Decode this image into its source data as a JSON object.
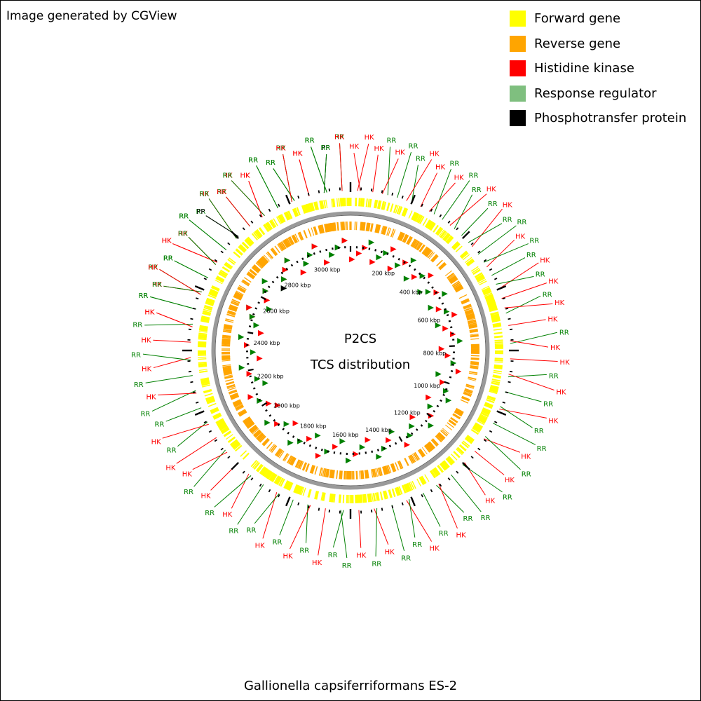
{
  "credit": "Image generated by CGView",
  "caption": "Gallionella capsiferriformans ES-2",
  "center_title": "P2CS",
  "center_subtitle": "TCS distribution",
  "legend": [
    {
      "label": "Forward gene",
      "color": "#ffff00"
    },
    {
      "label": "Reverse gene",
      "color": "#ffa500"
    },
    {
      "label": "Histidine kinase",
      "color": "#ff0000"
    },
    {
      "label": "Response regulator",
      "color": "#7fbf7f"
    },
    {
      "label": "Phosphotransfer protein",
      "color": "#000000"
    }
  ],
  "genome_ruler": {
    "unit": "kbp",
    "tick_labels": [
      "200 kbp",
      "400 kbp",
      "600 kbp",
      "800 kbp",
      "1000 kbp",
      "1200 kbp",
      "1400 kbp",
      "1600 kbp",
      "1800 kbp",
      "2000 kbp",
      "2200 kbp",
      "2400 kbp",
      "2600 kbp",
      "2800 kbp",
      "3000 kbp"
    ]
  },
  "feature_labels": [
    {
      "text": "HK",
      "color": "#ff0000",
      "deg": -79
    },
    {
      "text": "RR",
      "color": "#008000",
      "deg": -75
    },
    {
      "text": "HK",
      "color": "#ff0000",
      "deg": -71
    },
    {
      "text": "RR",
      "color": "#008000",
      "deg": -67
    },
    {
      "text": "RR",
      "color": "#008000",
      "deg": -63
    },
    {
      "text": "HK",
      "color": "#ff0000",
      "deg": -59
    },
    {
      "text": "HK",
      "color": "#ff0000",
      "deg": -55
    },
    {
      "text": "RR",
      "color": "#008000",
      "deg": -51
    },
    {
      "text": "RR",
      "color": "#008000",
      "deg": -47
    },
    {
      "text": "HK",
      "color": "#ff0000",
      "deg": -43
    },
    {
      "text": "RR",
      "color": "#008000",
      "deg": -39
    },
    {
      "text": "HK",
      "color": "#ff0000",
      "deg": -35
    },
    {
      "text": "HK",
      "color": "#ff0000",
      "deg": -31
    },
    {
      "text": "RR",
      "color": "#008000",
      "deg": -27
    },
    {
      "text": "RR",
      "color": "#008000",
      "deg": -23
    },
    {
      "text": "RR",
      "color": "#008000",
      "deg": -19
    },
    {
      "text": "HK",
      "color": "#ff0000",
      "deg": -15
    },
    {
      "text": "RR",
      "color": "#008000",
      "deg": -11
    },
    {
      "text": "PP",
      "color": "#000000",
      "deg": -7
    },
    {
      "text": "RR",
      "color": "#008000",
      "deg": -3
    },
    {
      "text": "HK",
      "color": "#ff0000",
      "deg": 1
    },
    {
      "text": "HK",
      "color": "#ff0000",
      "deg": 5
    },
    {
      "text": "HK",
      "color": "#ff0000",
      "deg": 8
    },
    {
      "text": "RR",
      "color": "#008000",
      "deg": 11
    },
    {
      "text": "HK",
      "color": "#ff0000",
      "deg": 14
    },
    {
      "text": "RR",
      "color": "#008000",
      "deg": 17
    },
    {
      "text": "RR",
      "color": "#008000",
      "deg": 20
    },
    {
      "text": "HK",
      "color": "#ff0000",
      "deg": 23
    },
    {
      "text": "HK",
      "color": "#ff0000",
      "deg": 26
    },
    {
      "text": "RR",
      "color": "#008000",
      "deg": 29
    },
    {
      "text": "HK",
      "color": "#ff0000",
      "deg": 32
    },
    {
      "text": "RR",
      "color": "#008000",
      "deg": 35
    },
    {
      "text": "RR",
      "color": "#008000",
      "deg": 38
    },
    {
      "text": "HK",
      "color": "#ff0000",
      "deg": 41
    },
    {
      "text": "RR",
      "color": "#008000",
      "deg": 44
    },
    {
      "text": "HK",
      "color": "#ff0000",
      "deg": 47
    },
    {
      "text": "RR",
      "color": "#008000",
      "deg": 50
    },
    {
      "text": "RR",
      "color": "#008000",
      "deg": 53
    },
    {
      "text": "HK",
      "color": "#ff0000",
      "deg": 56
    },
    {
      "text": "RR",
      "color": "#008000",
      "deg": 59
    },
    {
      "text": "RR",
      "color": "#008000",
      "deg": 62
    },
    {
      "text": "HK",
      "color": "#ff0000",
      "deg": 65
    },
    {
      "text": "RR",
      "color": "#008000",
      "deg": 68
    },
    {
      "text": "HK",
      "color": "#ff0000",
      "deg": 71
    },
    {
      "text": "RR",
      "color": "#008000",
      "deg": 74
    },
    {
      "text": "HK",
      "color": "#ff0000",
      "deg": 77
    },
    {
      "text": "HK",
      "color": "#ff0000",
      "deg": 81
    },
    {
      "text": "RR",
      "color": "#008000",
      "deg": 85
    },
    {
      "text": "HK",
      "color": "#ff0000",
      "deg": 89
    },
    {
      "text": "HK",
      "color": "#ff0000",
      "deg": 93
    },
    {
      "text": "RR",
      "color": "#008000",
      "deg": 97
    },
    {
      "text": "HK",
      "color": "#ff0000",
      "deg": 101
    },
    {
      "text": "RR",
      "color": "#008000",
      "deg": 105
    },
    {
      "text": "HK",
      "color": "#ff0000",
      "deg": 109
    },
    {
      "text": "RR",
      "color": "#008000",
      "deg": 113
    },
    {
      "text": "RR",
      "color": "#008000",
      "deg": 117
    },
    {
      "text": "HK",
      "color": "#ff0000",
      "deg": 121
    },
    {
      "text": "RR",
      "color": "#008000",
      "deg": 125
    },
    {
      "text": "HK",
      "color": "#ff0000",
      "deg": 129
    },
    {
      "text": "RR",
      "color": "#008000",
      "deg": 133
    },
    {
      "text": "HK",
      "color": "#ff0000",
      "deg": 137
    },
    {
      "text": "RR",
      "color": "#008000",
      "deg": 141
    },
    {
      "text": "RR",
      "color": "#008000",
      "deg": 145
    },
    {
      "text": "HK",
      "color": "#ff0000",
      "deg": 149
    },
    {
      "text": "RR",
      "color": "#008000",
      "deg": 153
    },
    {
      "text": "HK",
      "color": "#ff0000",
      "deg": 157
    },
    {
      "text": "RR",
      "color": "#008000",
      "deg": 161
    },
    {
      "text": "RR",
      "color": "#008000",
      "deg": 165
    },
    {
      "text": "HK",
      "color": "#ff0000",
      "deg": 169
    },
    {
      "text": "RR",
      "color": "#008000",
      "deg": 173
    },
    {
      "text": "HK",
      "color": "#ff0000",
      "deg": 177
    },
    {
      "text": "RR",
      "color": "#008000",
      "deg": 181
    },
    {
      "text": "RR",
      "color": "#008000",
      "deg": 185
    },
    {
      "text": "HK",
      "color": "#ff0000",
      "deg": 189
    },
    {
      "text": "RR",
      "color": "#008000",
      "deg": 193
    },
    {
      "text": "HK",
      "color": "#ff0000",
      "deg": 197
    },
    {
      "text": "RR",
      "color": "#008000",
      "deg": 201
    },
    {
      "text": "HK",
      "color": "#ff0000",
      "deg": 205
    },
    {
      "text": "RR",
      "color": "#008000",
      "deg": 209
    },
    {
      "text": "RR",
      "color": "#008000",
      "deg": 213
    },
    {
      "text": "HK",
      "color": "#ff0000",
      "deg": 217
    },
    {
      "text": "RR",
      "color": "#008000",
      "deg": 221
    },
    {
      "text": "HK",
      "color": "#ff0000",
      "deg": 225
    },
    {
      "text": "RR",
      "color": "#008000",
      "deg": 229
    },
    {
      "text": "HK",
      "color": "#ff0000",
      "deg": 233
    },
    {
      "text": "HK",
      "color": "#ff0000",
      "deg": 237
    },
    {
      "text": "RR",
      "color": "#008000",
      "deg": 241
    },
    {
      "text": "HK",
      "color": "#ff0000",
      "deg": 245
    },
    {
      "text": "RR",
      "color": "#008000",
      "deg": 249
    },
    {
      "text": "RR",
      "color": "#008000",
      "deg": 253
    },
    {
      "text": "HK",
      "color": "#ff0000",
      "deg": 257
    },
    {
      "text": "RR",
      "color": "#008000",
      "deg": 261
    },
    {
      "text": "HK",
      "color": "#ff0000",
      "deg": 265
    },
    {
      "text": "RR",
      "color": "#008000",
      "deg": 269
    },
    {
      "text": "HK",
      "color": "#ff0000",
      "deg": 273
    },
    {
      "text": "RR",
      "color": "#008000",
      "deg": 277
    },
    {
      "text": "HK",
      "color": "#ff0000",
      "deg": 281
    },
    {
      "text": "RR",
      "color": "#008000",
      "deg": 285
    },
    {
      "text": "RR",
      "color": "#008000",
      "deg": 289
    },
    {
      "text": "HK",
      "color": "#ff0000",
      "deg": 293
    },
    {
      "text": "RR",
      "color": "#008000",
      "deg": 297
    },
    {
      "text": "HK",
      "color": "#ff0000",
      "deg": 301
    },
    {
      "text": "RR",
      "color": "#008000",
      "deg": 305
    },
    {
      "text": "RR",
      "color": "#008000",
      "deg": 309
    },
    {
      "text": "PP",
      "color": "#000000",
      "deg": 313
    },
    {
      "text": "RR",
      "color": "#008000",
      "deg": 317
    },
    {
      "text": "HK",
      "color": "#ff0000",
      "deg": 321
    },
    {
      "text": "RR",
      "color": "#008000",
      "deg": 325
    },
    {
      "text": "HK",
      "color": "#ff0000",
      "deg": 329
    },
    {
      "text": "RR",
      "color": "#008000",
      "deg": 333
    },
    {
      "text": "RR",
      "color": "#008000",
      "deg": 337
    },
    {
      "text": "HK",
      "color": "#ff0000",
      "deg": 341
    },
    {
      "text": "HK",
      "color": "#ff0000",
      "deg": 345
    },
    {
      "text": "RR",
      "color": "#008000",
      "deg": 349
    },
    {
      "text": "RR",
      "color": "#008000",
      "deg": 353
    },
    {
      "text": "HK",
      "color": "#ff0000",
      "deg": 357
    }
  ]
}
